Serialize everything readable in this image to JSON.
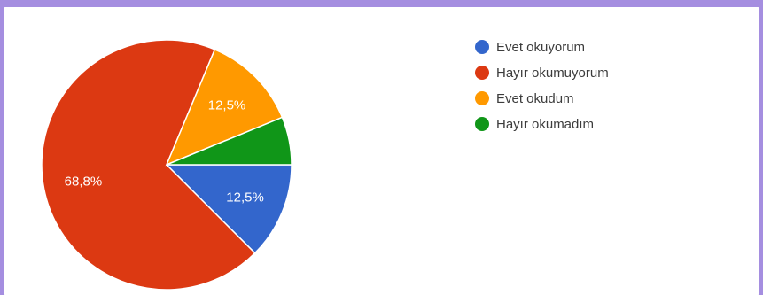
{
  "chart_data": {
    "type": "pie",
    "categories": [
      "Evet okuyorum",
      "Hayır okumuyorum",
      "Evet okudum",
      "Hayır okumadım"
    ],
    "values": [
      12.5,
      68.8,
      12.5,
      6.2
    ],
    "colors": [
      "#3366cc",
      "#dc3912",
      "#ff9900",
      "#109618"
    ],
    "data_labels": [
      "12,5%",
      "68,8%",
      "12,5%",
      ""
    ],
    "legend_position": "right",
    "start": "3 o'clock, clockwise",
    "title": ""
  }
}
